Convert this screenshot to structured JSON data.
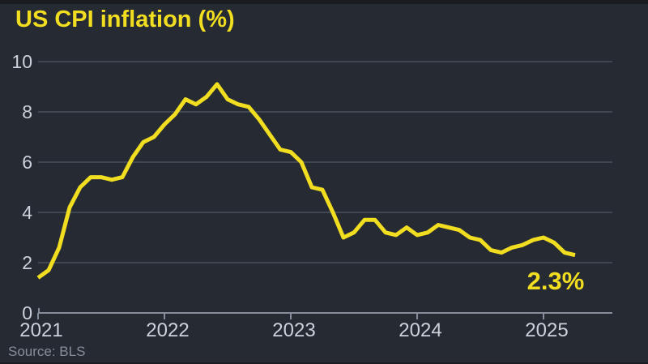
{
  "title": "US CPI inflation (%)",
  "source": "Source: BLS",
  "colors": {
    "background": "#262a33",
    "accent_yellow": "#f2de20",
    "gridline": "#515866",
    "axis": "#878e9b",
    "tick_label": "#ccd1da",
    "source_text": "#878d99",
    "top_edge": "#1a1c22"
  },
  "chart_data": {
    "type": "line",
    "title": "US CPI inflation (%)",
    "series_name": "US CPI year-over-year inflation rate (%)",
    "interval": "monthly",
    "x_start": "2021-01",
    "x_end": "2025-04",
    "values": [
      1.4,
      1.7,
      2.6,
      4.2,
      5.0,
      5.4,
      5.4,
      5.3,
      5.4,
      6.2,
      6.8,
      7.0,
      7.5,
      7.9,
      8.5,
      8.3,
      8.6,
      9.1,
      8.5,
      8.3,
      8.2,
      7.7,
      7.1,
      6.5,
      6.4,
      6.0,
      5.0,
      4.9,
      4.0,
      3.0,
      3.2,
      3.7,
      3.7,
      3.2,
      3.1,
      3.4,
      3.1,
      3.2,
      3.5,
      3.4,
      3.3,
      3.0,
      2.9,
      2.5,
      2.4,
      2.6,
      2.7,
      2.9,
      3.0,
      2.8,
      2.4,
      2.3
    ],
    "x_tick_labels": [
      "2021",
      "2022",
      "2023",
      "2024",
      "2025"
    ],
    "y_ticks": [
      0,
      2,
      4,
      6,
      8,
      10
    ],
    "ylim": [
      0,
      10
    ],
    "grid": "horizontal",
    "legend": "none",
    "annotation": "2.3%",
    "line_color": "#f2de20"
  }
}
